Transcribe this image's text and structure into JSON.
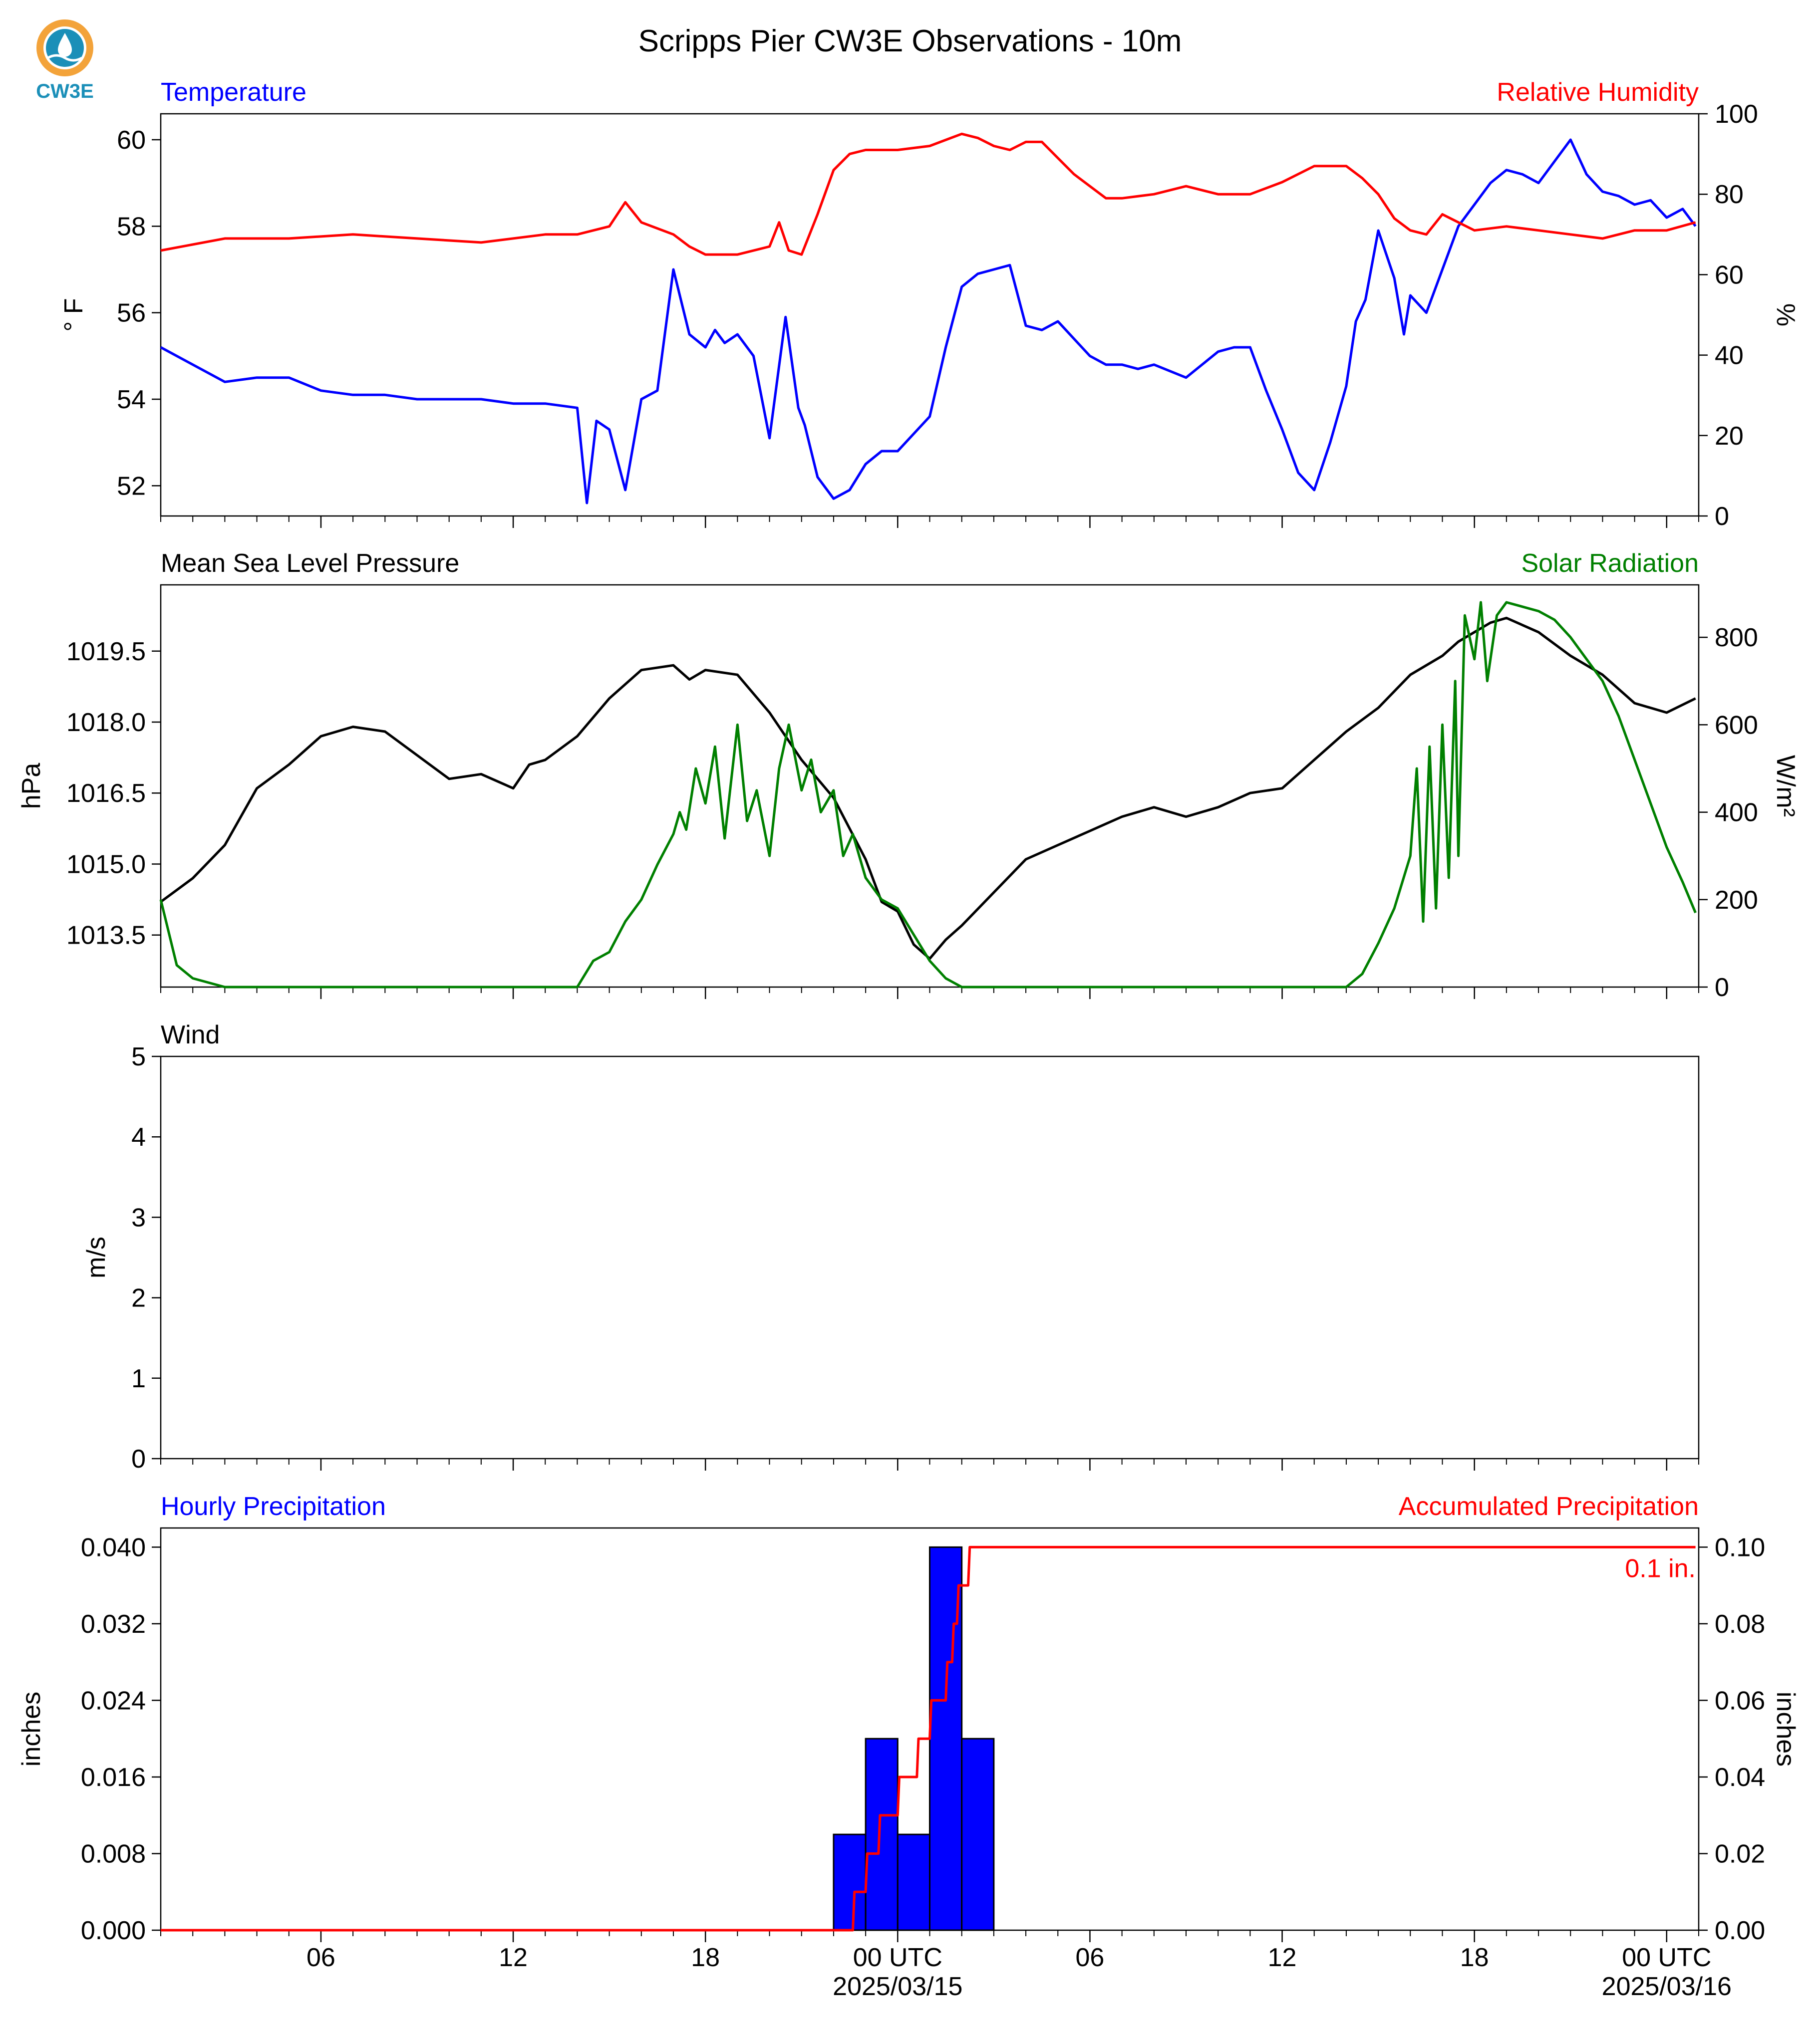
{
  "title": "Scripps Pier CW3E Observations - 10m",
  "logo": {
    "text": "CW3E",
    "ring_color": "#f3a33a",
    "water_color": "#1b8fb8"
  },
  "colors": {
    "temperature": "#0000ff",
    "humidity": "#ff0000",
    "pressure": "#000000",
    "solar": "#008000",
    "precip_bars": "#0000ff",
    "accum": "#ff0000"
  },
  "x_axis": {
    "start_hour": 0,
    "end_hour": 48,
    "ticks": [
      {
        "hour": 5,
        "label": "06",
        "date": ""
      },
      {
        "hour": 11,
        "label": "12",
        "date": ""
      },
      {
        "hour": 17,
        "label": "18",
        "date": ""
      },
      {
        "hour": 23,
        "label": "00 UTC",
        "date": "2025/03/15"
      },
      {
        "hour": 29,
        "label": "06",
        "date": ""
      },
      {
        "hour": 35,
        "label": "12",
        "date": ""
      },
      {
        "hour": 41,
        "label": "18",
        "date": ""
      },
      {
        "hour": 47,
        "label": "00 UTC",
        "date": "2025/03/16"
      }
    ]
  },
  "panels": {
    "temp_rh": {
      "left_title": "Temperature",
      "right_title": "Relative Humidity",
      "left_unit": "° F",
      "right_unit": "%"
    },
    "pressure_solar": {
      "left_title": "Mean Sea Level Pressure",
      "right_title": "Solar Radiation",
      "left_unit": "hPa",
      "right_unit": "W/m²"
    },
    "wind": {
      "left_title": "Wind",
      "left_unit": "m/s"
    },
    "precip": {
      "left_title": "Hourly Precipitation",
      "right_title": "Accumulated Precipitation",
      "left_unit": "inches",
      "right_unit": "inches",
      "total_label": "0.1 in."
    }
  },
  "chart_data": [
    {
      "type": "line",
      "title": "Temperature / Relative Humidity",
      "x_unit": "hours since 2025/03/14 01 UTC",
      "ylim": [
        51.3,
        60.6
      ],
      "y_ticks": [
        52,
        54,
        56,
        58,
        60
      ],
      "ylabel": "° F",
      "y2lim": [
        0,
        100
      ],
      "y2_ticks": [
        0,
        20,
        40,
        60,
        80,
        100
      ],
      "y2label": "%",
      "series": [
        {
          "name": "Temperature",
          "axis": "left",
          "x": [
            0,
            1,
            2,
            3,
            4,
            5,
            6,
            7,
            8,
            9,
            10,
            11,
            12,
            13,
            13.3,
            13.6,
            14,
            14.5,
            15,
            15.5,
            16,
            16.5,
            17,
            17.3,
            17.6,
            18,
            18.5,
            19,
            19.5,
            19.9,
            20.1,
            20.5,
            21,
            21.5,
            22,
            22.5,
            23,
            23.5,
            24,
            24.5,
            25,
            25.5,
            26,
            26.5,
            27,
            27.5,
            28,
            28.5,
            29,
            29.5,
            30,
            30.5,
            31,
            32,
            33,
            33.5,
            34,
            34.5,
            35,
            35.5,
            36,
            36.5,
            37,
            37.3,
            37.6,
            38,
            38.5,
            38.8,
            39,
            39.5,
            40,
            40.5,
            41,
            41.5,
            42,
            42.5,
            43,
            43.5,
            44,
            44.5,
            45,
            45.5,
            46,
            46.5,
            47,
            47.5,
            47.9
          ],
          "values": [
            55.2,
            54.8,
            54.4,
            54.5,
            54.5,
            54.2,
            54.1,
            54.1,
            54.0,
            54.0,
            54.0,
            53.9,
            53.9,
            53.8,
            51.6,
            53.5,
            53.3,
            51.9,
            54.0,
            54.2,
            57.0,
            55.5,
            55.2,
            55.6,
            55.3,
            55.5,
            55.0,
            53.1,
            55.9,
            53.8,
            53.4,
            52.2,
            51.7,
            51.9,
            52.5,
            52.8,
            52.8,
            53.2,
            53.6,
            55.2,
            56.6,
            56.9,
            57.0,
            57.1,
            55.7,
            55.6,
            55.8,
            55.4,
            55.0,
            54.8,
            54.8,
            54.7,
            54.8,
            54.5,
            55.1,
            55.2,
            55.2,
            54.2,
            53.3,
            52.3,
            51.9,
            53.0,
            54.3,
            55.8,
            56.3,
            57.9,
            56.8,
            55.5,
            56.4,
            56.0,
            57.0,
            58.0,
            58.5,
            59.0,
            59.3,
            59.2,
            59.0,
            59.5,
            60.0,
            59.2,
            58.8,
            58.7,
            58.5,
            58.6,
            58.2,
            58.4,
            58.0
          ]
        },
        {
          "name": "Relative Humidity",
          "axis": "right",
          "x": [
            0,
            2,
            4,
            6,
            8,
            10,
            12,
            13,
            14,
            14.5,
            15,
            16,
            16.5,
            17,
            17.5,
            18,
            19,
            19.3,
            19.6,
            20,
            20.5,
            21,
            21.5,
            22,
            23,
            24,
            25,
            25.5,
            26,
            26.5,
            27,
            27.5,
            28,
            28.5,
            29,
            29.5,
            30,
            31,
            32,
            33,
            34,
            35,
            36,
            37,
            37.5,
            38,
            38.5,
            39,
            39.5,
            40,
            41,
            42,
            43,
            44,
            45,
            46,
            47,
            47.9
          ],
          "values": [
            66,
            69,
            69,
            70,
            69,
            68,
            70,
            70,
            72,
            78,
            73,
            70,
            67,
            65,
            65,
            65,
            67,
            73,
            66,
            65,
            75,
            86,
            90,
            91,
            91,
            92,
            95,
            94,
            92,
            91,
            93,
            93,
            89,
            85,
            82,
            79,
            79,
            80,
            82,
            80,
            80,
            83,
            87,
            87,
            84,
            80,
            74,
            71,
            70,
            75,
            71,
            72,
            71,
            70,
            69,
            71,
            71,
            73
          ]
        }
      ]
    },
    {
      "type": "line",
      "title": "Mean Sea Level Pressure / Solar Radiation",
      "x_unit": "hours since 2025/03/14 01 UTC",
      "ylim": [
        1012.4,
        1020.9
      ],
      "y_ticks": [
        1013.5,
        1015.0,
        1016.5,
        1018.0,
        1019.5
      ],
      "ylabel": "hPa",
      "y2lim": [
        0,
        920
      ],
      "y2_ticks": [
        0,
        200,
        400,
        600,
        800
      ],
      "y2label": "W/m²",
      "series": [
        {
          "name": "Mean Sea Level Pressure",
          "axis": "left",
          "x": [
            0,
            1,
            2,
            3,
            4,
            5,
            6,
            7,
            8,
            9,
            10,
            11,
            11.5,
            12,
            13,
            14,
            15,
            16,
            16.5,
            17,
            18,
            19,
            20,
            21,
            22,
            22.5,
            23,
            23.5,
            24,
            24.5,
            25,
            26,
            27,
            28,
            29,
            30,
            31,
            32,
            33,
            34,
            35,
            36,
            37,
            38,
            39,
            39.5,
            40,
            40.5,
            41,
            41.5,
            42,
            43,
            44,
            45,
            46,
            47,
            47.9
          ],
          "values": [
            1014.2,
            1014.7,
            1015.4,
            1016.6,
            1017.1,
            1017.7,
            1017.9,
            1017.8,
            1017.3,
            1016.8,
            1016.9,
            1016.6,
            1017.1,
            1017.2,
            1017.7,
            1018.5,
            1019.1,
            1019.2,
            1018.9,
            1019.1,
            1019.0,
            1018.2,
            1017.2,
            1016.4,
            1015.1,
            1014.2,
            1014.0,
            1013.3,
            1013.0,
            1013.4,
            1013.7,
            1014.4,
            1015.1,
            1015.4,
            1015.7,
            1016.0,
            1016.2,
            1016.0,
            1016.2,
            1016.5,
            1016.6,
            1017.2,
            1017.8,
            1018.3,
            1019.0,
            1019.2,
            1019.4,
            1019.7,
            1019.9,
            1020.1,
            1020.2,
            1019.9,
            1019.4,
            1019.0,
            1018.4,
            1018.2,
            1018.5
          ]
        },
        {
          "name": "Solar Radiation",
          "axis": "right",
          "x": [
            0,
            0.5,
            1,
            2,
            5,
            10,
            13,
            13.5,
            14,
            14.5,
            15,
            15.5,
            16,
            16.2,
            16.4,
            16.7,
            17,
            17.3,
            17.6,
            18,
            18.3,
            18.6,
            19,
            19.3,
            19.6,
            20,
            20.3,
            20.6,
            21,
            21.3,
            21.6,
            22,
            22.5,
            23,
            23.5,
            24,
            24.5,
            25,
            30,
            35,
            37,
            37.5,
            38,
            38.5,
            39,
            39.2,
            39.4,
            39.6,
            39.8,
            40,
            40.2,
            40.4,
            40.5,
            40.7,
            41,
            41.2,
            41.4,
            41.7,
            42,
            42.5,
            43,
            43.5,
            44,
            44.5,
            45,
            45.5,
            46,
            46.5,
            47,
            47.5,
            47.9
          ],
          "values": [
            200,
            50,
            20,
            0,
            0,
            0,
            0,
            60,
            80,
            150,
            200,
            280,
            350,
            400,
            360,
            500,
            420,
            550,
            340,
            600,
            380,
            450,
            300,
            500,
            600,
            450,
            520,
            400,
            450,
            300,
            350,
            250,
            200,
            180,
            120,
            60,
            20,
            0,
            0,
            0,
            0,
            30,
            100,
            180,
            300,
            500,
            150,
            550,
            180,
            600,
            250,
            700,
            300,
            850,
            750,
            880,
            700,
            850,
            880,
            870,
            860,
            840,
            800,
            750,
            700,
            620,
            520,
            420,
            320,
            240,
            170
          ]
        }
      ]
    },
    {
      "type": "line",
      "title": "Wind",
      "ylim": [
        0,
        5
      ],
      "y_ticks": [
        0,
        1,
        2,
        3,
        4,
        5
      ],
      "ylabel": "m/s",
      "series": []
    },
    {
      "type": "bar",
      "title": "Hourly Precipitation / Accumulated Precipitation",
      "x_unit": "hours since 2025/03/14 01 UTC",
      "ylim": [
        0,
        0.042
      ],
      "y_ticks": [
        0.0,
        0.008,
        0.016,
        0.024,
        0.032,
        0.04
      ],
      "ylabel": "inches",
      "y2lim": [
        0,
        0.105
      ],
      "y2_ticks": [
        0.0,
        0.02,
        0.04,
        0.06,
        0.08,
        0.1
      ],
      "y2label": "inches",
      "bars": {
        "name": "Hourly Precipitation",
        "hour_start": [
          21,
          22,
          23,
          24,
          25
        ],
        "values": [
          0.01,
          0.02,
          0.01,
          0.04,
          0.02
        ]
      },
      "series": [
        {
          "name": "Accumulated Precipitation",
          "axis": "right",
          "x": [
            0,
            21.6,
            21.65,
            22.0,
            22.05,
            22.4,
            22.45,
            23.0,
            23.05,
            23.6,
            23.65,
            24.0,
            24.05,
            24.5,
            24.55,
            24.7,
            24.75,
            24.85,
            24.9,
            25.2,
            25.25,
            47.9
          ],
          "values": [
            0,
            0,
            0.01,
            0.01,
            0.02,
            0.02,
            0.03,
            0.03,
            0.04,
            0.04,
            0.05,
            0.05,
            0.06,
            0.06,
            0.07,
            0.07,
            0.08,
            0.08,
            0.09,
            0.09,
            0.1,
            0.1
          ]
        }
      ]
    }
  ]
}
